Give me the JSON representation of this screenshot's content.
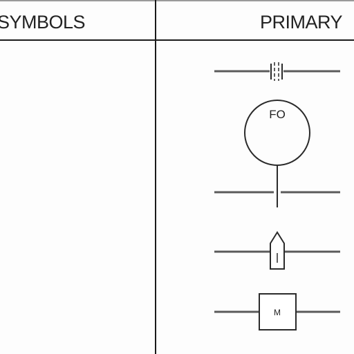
{
  "table": {
    "headers": {
      "symbols": "SYMBOLS",
      "primary": "PRIMARY"
    }
  },
  "symbols": [
    {
      "name": "orifice-plate-flange",
      "label": ""
    },
    {
      "name": "flow-indicator-balloon",
      "label": "FO"
    },
    {
      "name": "flow-element-line-break",
      "label": ""
    },
    {
      "name": "arrow-flow-element",
      "label": ""
    },
    {
      "name": "meter-box-element",
      "label": "M"
    }
  ],
  "colors": {
    "line": "#2a2a2a",
    "pipe": "#5a5a5a",
    "background": "#fdfdfd"
  }
}
